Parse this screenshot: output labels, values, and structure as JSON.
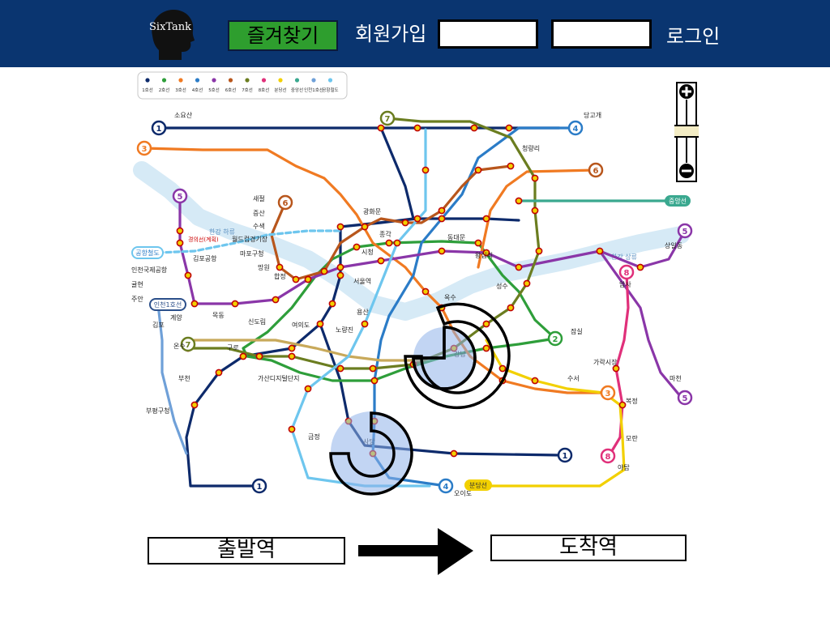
{
  "header": {
    "logo_text": "SixTank",
    "favorites_label": "즐겨찾기",
    "signup_label": "회원가입",
    "id_input_value": "",
    "pw_input_value": "",
    "login_label": "로그인",
    "background_color": "#0a3570"
  },
  "legend": {
    "items": [
      {
        "label": "1호선",
        "color": "#0d2a6b"
      },
      {
        "label": "2호선",
        "color": "#2e9e3a"
      },
      {
        "label": "3호선",
        "color": "#f07a22"
      },
      {
        "label": "4호선",
        "color": "#2b7cc7"
      },
      {
        "label": "5호선",
        "color": "#8a36a8"
      },
      {
        "label": "6호선",
        "color": "#b8561c"
      },
      {
        "label": "7호선",
        "color": "#6b7d20"
      },
      {
        "label": "8호선",
        "color": "#e0307a"
      },
      {
        "label": "분당선",
        "color": "#f2d000"
      },
      {
        "label": "중앙선",
        "color": "#3aa88f"
      },
      {
        "label": "인천1호선",
        "color": "#6fa0d8"
      },
      {
        "label": "공항철도",
        "color": "#6ec6ee"
      }
    ]
  },
  "map": {
    "badges": {
      "b1a": "1",
      "b1b": "1",
      "b1c": "1",
      "b2": "2",
      "b3a": "3",
      "b3b": "3",
      "b4a": "4",
      "b4b": "4",
      "b5a": "5",
      "b5b": "5",
      "b5c": "5",
      "b6a": "6",
      "b6b": "6",
      "b7a": "7",
      "b7b": "7",
      "b8a": "8",
      "b8b": "8",
      "jungang": "중앙선",
      "airport": "공항철도",
      "incheon": "인천1호선",
      "bundang": "분당선"
    },
    "labels": {
      "soyosan": "소요산",
      "dangogae": "당고개",
      "seojeong": "새절",
      "jeungsan": "증산",
      "susaek": "수색",
      "worldcup": "월드컵경기장",
      "mapogu": "마포구청",
      "mangwon": "망원",
      "hapjeong": "합정",
      "seoul": "서울역",
      "sicheong": "시청",
      "jonggak": "종각",
      "dongdaemun": "동대문",
      "gangnam": "강남",
      "sadang": "사당",
      "gasan": "가산디지털단지",
      "yongsan": "용산",
      "noryangjin": "노량진",
      "sindorim": "신도림",
      "gwanghwamun": "광화문",
      "oksu": "옥수",
      "wangsimni": "왕십리",
      "jamsil": "잠실",
      "bokjeong": "복정",
      "moran": "모란",
      "gimpo_airport": "김포공항",
      "gyeyang": "계양",
      "oido": "오이도",
      "yatap": "야탑",
      "amsa": "암사",
      "sangil": "상일동",
      "macheon": "마천",
      "guro": "구로",
      "geumjeong": "금정",
      "seongsu": "성수",
      "incheon_intl": "인천국제공항",
      "gyulhyeon": "귤현",
      "juan": "주안",
      "hangang_a": "한강 하류",
      "hangang_b": "한강 상류",
      "gyeongui": "경의선(계획)",
      "bupyeong": "부평구청",
      "bucheon": "부천",
      "onsu": "온수",
      "cheongnyangni": "청량리",
      "suseo": "수서",
      "garak": "가락시장",
      "mokdong": "목동",
      "yeouido": "여의도",
      "gimpo2": "김포"
    }
  },
  "zoom": {
    "plus_icon": "plus-icon",
    "minus_icon": "minus-icon"
  },
  "route": {
    "departure_label": "출발역",
    "arrival_label": "도착역"
  }
}
